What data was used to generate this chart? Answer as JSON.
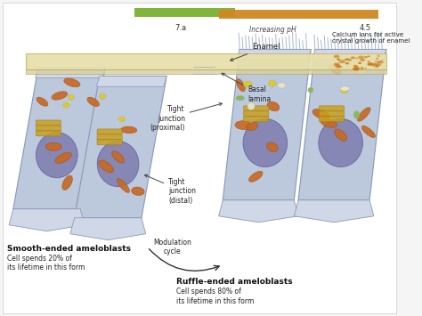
{
  "title": "",
  "fig_bg": "#f5f5f5",
  "colors": {
    "cell_body_light": "#d0d8e8",
    "cell_body": "#bcc8dc",
    "cell_border": "#8898b8",
    "cell_shadow": "#9aaac0",
    "nucleus": "#8080b0",
    "nucleus_edge": "#6060a0",
    "mitochondria": "#c86820",
    "mitochondria_edge": "#a05010",
    "golgi": "#c8a020",
    "golgi_dark": "#a07810",
    "enamel": "#e8dfa8",
    "enamel_edge": "#c8b870",
    "green_bar": "#7ab030",
    "orange_bar": "#d08820",
    "calcium_dot": "#c87818",
    "vesicle_white": "#e8e8d8",
    "vesicle_yellow": "#e0c820",
    "vesicle_green": "#80b850",
    "vesicle_edge": "#b0b080",
    "ruffle_line": "#8898b8",
    "white_bg": "#ffffff",
    "text_dark": "#222222",
    "text_bold": "#111111",
    "arrow_color": "#333333",
    "sep_color": "#9aa8c0"
  },
  "labels": {
    "enamel": "Enamel",
    "basal_lamina": "Basal\nlamina",
    "tight_prox": "Tight\njunction\n(proximal)",
    "tight_distal": "Tight\njunction\n(distal)",
    "smooth": "Smooth-ended ameloblasts",
    "smooth_sub": "Cell spends 20% of\nits lifetime in this form",
    "ruffle": "Ruffle-ended ameloblasts",
    "ruffle_sub": "Cell spends 80% of\nits lifetime in this form",
    "modulation": "Modulation\ncycle",
    "calcium": "Calcium ions for active\ncrystal growth of enamel",
    "increasing_ph": "Increasing pH",
    "ph_left": "7.a",
    "ph_right": "4.5"
  }
}
